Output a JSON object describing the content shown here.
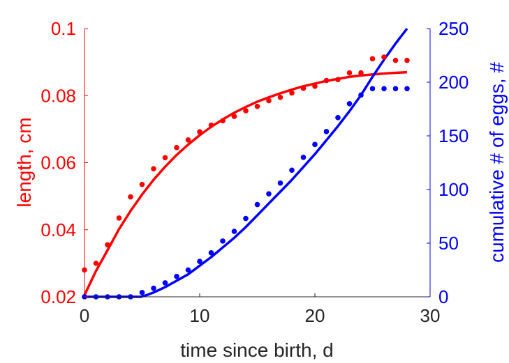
{
  "chart_data": {
    "type": "line",
    "xlabel": "time since birth, d",
    "ylabel_left": "length, cm",
    "ylabel_right": "cumulative # of eggs, #",
    "xlim": [
      0,
      30
    ],
    "ylim_left": [
      0.02,
      0.1
    ],
    "ylim_right": [
      0,
      250
    ],
    "xticks": [
      0,
      10,
      20,
      30
    ],
    "yticks_left": [
      0.02,
      0.04,
      0.06,
      0.08,
      0.1
    ],
    "yticks_right": [
      0,
      50,
      100,
      150,
      200,
      250
    ],
    "grid": false,
    "colors": {
      "length": "#ff0000",
      "eggs": "#0000ff",
      "axis": "#262626"
    },
    "length_data": {
      "x": [
        0,
        1,
        2,
        3,
        4,
        5,
        6,
        7,
        8,
        9,
        10,
        11,
        12,
        13,
        14,
        15,
        16,
        17,
        18,
        19,
        20,
        21,
        22,
        23,
        24,
        25,
        26,
        27,
        28
      ],
      "y": [
        0.028,
        0.03,
        0.0355,
        0.0435,
        0.0498,
        0.0535,
        0.0582,
        0.0615,
        0.0645,
        0.0668,
        0.0692,
        0.0712,
        0.0725,
        0.0738,
        0.0755,
        0.0768,
        0.0785,
        0.0795,
        0.0808,
        0.0822,
        0.0828,
        0.0845,
        0.0848,
        0.0868,
        0.0868,
        0.091,
        0.0915,
        0.0905,
        0.0905
      ]
    },
    "length_fit": {
      "x": [
        0,
        1,
        2,
        3,
        4,
        5,
        6,
        7,
        8,
        9,
        10,
        11,
        12,
        13,
        14,
        15,
        16,
        17,
        18,
        19,
        20,
        21,
        22,
        23,
        24,
        25,
        26,
        27,
        28
      ],
      "y": [
        0.0205,
        0.0277,
        0.0339,
        0.0402,
        0.0456,
        0.0505,
        0.0549,
        0.0588,
        0.0623,
        0.0654,
        0.0682,
        0.0707,
        0.0729,
        0.0749,
        0.0766,
        0.0782,
        0.0795,
        0.0807,
        0.0818,
        0.0828,
        0.0836,
        0.0844,
        0.085,
        0.0856,
        0.086,
        0.0863,
        0.0866,
        0.0868,
        0.087
      ]
    },
    "eggs_data": {
      "x": [
        0,
        1,
        2,
        3,
        4,
        5,
        6,
        7,
        8,
        9,
        10,
        11,
        12,
        13,
        14,
        15,
        16,
        17,
        18,
        19,
        20,
        21,
        22,
        23,
        24,
        25,
        26,
        27,
        28
      ],
      "y": [
        0,
        0,
        0,
        0,
        0,
        4,
        8,
        13,
        19,
        25,
        33,
        41,
        52,
        61,
        73,
        86,
        96,
        106,
        118,
        130,
        142,
        154,
        167,
        180,
        188,
        194,
        194,
        194,
        194
      ]
    },
    "eggs_fit": {
      "x": [
        0,
        4.9,
        5.5,
        6,
        7,
        8,
        9,
        10,
        11,
        12,
        13,
        14,
        15,
        16,
        17,
        18,
        19,
        20,
        21,
        22,
        23,
        24,
        25,
        26,
        27,
        28
      ],
      "y": [
        0,
        0,
        2,
        4,
        9,
        15,
        21,
        29,
        37,
        46,
        55,
        65,
        76,
        87,
        98,
        109,
        121,
        133,
        146,
        159,
        173,
        188,
        205,
        221,
        236,
        251
      ]
    }
  }
}
